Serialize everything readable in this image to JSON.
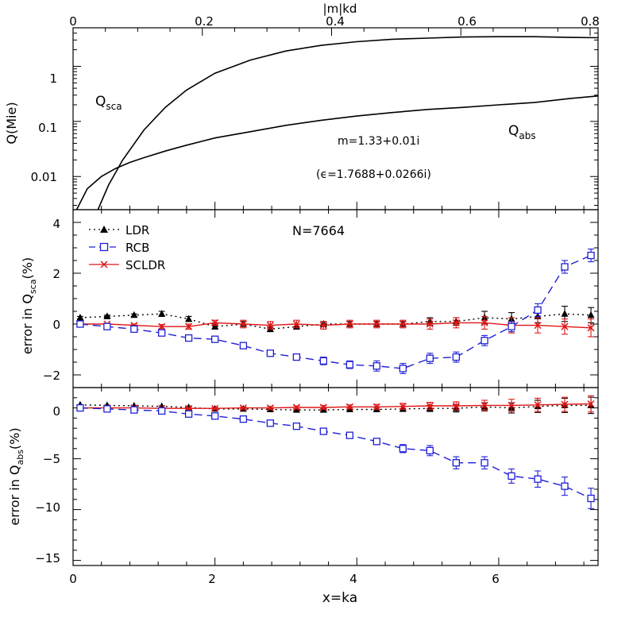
{
  "chart_data": [
    {
      "panel": "top",
      "type": "line",
      "xscale": "linear",
      "yscale": "log",
      "xlim": [
        0,
        7.4
      ],
      "ylim": [
        0.0025,
        5.0
      ],
      "xlabel_top": "|m|kd",
      "top_axis_ticks": [
        "0",
        "0.2",
        "0.4",
        "0.6",
        "0.8"
      ],
      "ylabel": "Q(Mie)",
      "ytick_labels": [
        "0.01",
        "0.1",
        "1"
      ],
      "annotations": {
        "qsca_main": "Q",
        "qsca_sub": "sca",
        "qabs_main": "Q",
        "qabs_sub": "abs",
        "m_text": "m=1.33+0.01i",
        "eps_text": "(ϵ=1.7688+0.0266i)"
      },
      "series": [
        {
          "x": [
            0.35,
            0.5,
            0.7,
            1.0,
            1.3,
            1.6,
            2.0,
            2.5,
            3.0,
            3.5,
            4.0,
            4.5,
            5.0,
            5.5,
            6.0,
            6.5,
            7.0,
            7.4
          ],
          "y": [
            0.0025,
            0.007,
            0.02,
            0.07,
            0.18,
            0.37,
            0.75,
            1.3,
            1.9,
            2.4,
            2.8,
            3.1,
            3.25,
            3.4,
            3.45,
            3.45,
            3.35,
            3.3
          ]
        },
        {
          "x": [
            0.05,
            0.2,
            0.4,
            0.6,
            0.8,
            1.0,
            1.3,
            1.6,
            2.0,
            2.5,
            3.0,
            3.5,
            4.0,
            4.5,
            5.0,
            5.5,
            6.0,
            6.5,
            7.0,
            7.4
          ],
          "y": [
            0.0025,
            0.006,
            0.01,
            0.014,
            0.018,
            0.022,
            0.029,
            0.037,
            0.05,
            0.065,
            0.085,
            0.105,
            0.125,
            0.145,
            0.165,
            0.18,
            0.2,
            0.22,
            0.26,
            0.29
          ]
        }
      ]
    },
    {
      "panel": "middle",
      "type": "line",
      "xlim": [
        0,
        7.4
      ],
      "ylim": [
        -2.5,
        4.5
      ],
      "ylabel_main": "error in Q",
      "ylabel_sub": "sca",
      "ylabel_suffix": "(%)",
      "ytick_labels": [
        "−2",
        "0",
        "2",
        "4"
      ],
      "n_text": "N=7664",
      "legend_position": "top-left",
      "legend": [
        "LDR",
        "RCB",
        "SCLDR"
      ],
      "x": [
        0.1,
        0.48,
        0.86,
        1.25,
        1.63,
        2.0,
        2.4,
        2.78,
        3.15,
        3.53,
        3.9,
        4.28,
        4.65,
        5.03,
        5.4,
        5.8,
        6.18,
        6.55,
        6.93,
        7.3
      ],
      "series": [
        {
          "name": "LDR",
          "y": [
            0.25,
            0.3,
            0.35,
            0.4,
            0.2,
            -0.1,
            0.0,
            -0.2,
            -0.1,
            0.0,
            0.0,
            0.0,
            0.0,
            0.1,
            0.1,
            0.25,
            0.2,
            0.3,
            0.4,
            0.35
          ],
          "err": [
            0.05,
            0.05,
            0.05,
            0.1,
            0.1,
            0.1,
            0.1,
            0.1,
            0.1,
            0.1,
            0.1,
            0.1,
            0.1,
            0.15,
            0.15,
            0.25,
            0.25,
            0.25,
            0.3,
            0.3
          ]
        },
        {
          "name": "RCB",
          "y": [
            0.0,
            -0.1,
            -0.2,
            -0.35,
            -0.55,
            -0.6,
            -0.85,
            -1.15,
            -1.3,
            -1.45,
            -1.6,
            -1.65,
            -1.75,
            -1.35,
            -1.3,
            -0.65,
            -0.1,
            0.55,
            2.25,
            2.7
          ],
          "err": [
            0.03,
            0.05,
            0.05,
            0.05,
            0.08,
            0.08,
            0.1,
            0.1,
            0.12,
            0.15,
            0.15,
            0.2,
            0.2,
            0.2,
            0.2,
            0.2,
            0.2,
            0.25,
            0.25,
            0.25
          ]
        },
        {
          "name": "SCLDR",
          "y": [
            0.0,
            0.0,
            -0.05,
            -0.1,
            -0.1,
            0.05,
            0.0,
            -0.05,
            0.0,
            -0.05,
            0.0,
            0.0,
            0.0,
            0.0,
            0.05,
            0.05,
            -0.05,
            -0.05,
            -0.1,
            -0.15
          ],
          "err": [
            0.03,
            0.03,
            0.05,
            0.08,
            0.1,
            0.1,
            0.15,
            0.15,
            0.15,
            0.15,
            0.15,
            0.15,
            0.15,
            0.2,
            0.2,
            0.25,
            0.3,
            0.3,
            0.3,
            0.35
          ]
        }
      ]
    },
    {
      "panel": "bottom",
      "type": "line",
      "xlim": [
        0,
        7.4
      ],
      "ylim": [
        -15.5,
        2.0
      ],
      "xlabel": "x=ka",
      "xtick_labels": [
        "0",
        "2",
        "4",
        "6"
      ],
      "ylabel_main": "error in Q",
      "ylabel_sub": "abs",
      "ylabel_suffix": "(%)",
      "ytick_labels": [
        "−15",
        "−10",
        "−5",
        "0"
      ],
      "x": [
        0.1,
        0.48,
        0.86,
        1.25,
        1.63,
        2.0,
        2.4,
        2.78,
        3.15,
        3.53,
        3.9,
        4.28,
        4.65,
        5.03,
        5.4,
        5.8,
        6.18,
        6.55,
        6.93,
        7.3
      ],
      "series": [
        {
          "name": "LDR",
          "y": [
            0.3,
            0.25,
            0.2,
            0.15,
            0.05,
            -0.1,
            -0.1,
            -0.15,
            -0.2,
            -0.2,
            -0.15,
            -0.15,
            -0.1,
            -0.05,
            -0.05,
            0.1,
            0.0,
            0.15,
            0.25,
            0.25
          ],
          "err": [
            0.05,
            0.05,
            0.05,
            0.05,
            0.1,
            0.1,
            0.1,
            0.1,
            0.1,
            0.15,
            0.2,
            0.2,
            0.25,
            0.3,
            0.35,
            0.4,
            0.5,
            0.6,
            0.7,
            0.8
          ]
        },
        {
          "name": "RCB",
          "y": [
            0.0,
            -0.1,
            -0.2,
            -0.3,
            -0.6,
            -0.8,
            -1.1,
            -1.5,
            -1.8,
            -2.3,
            -2.7,
            -3.3,
            -4.0,
            -4.2,
            -5.4,
            -5.4,
            -6.7,
            -7.0,
            -7.7,
            -8.9
          ],
          "err": [
            0.03,
            0.05,
            0.05,
            0.05,
            0.1,
            0.1,
            0.15,
            0.15,
            0.2,
            0.2,
            0.25,
            0.3,
            0.4,
            0.5,
            0.6,
            0.6,
            0.7,
            0.8,
            0.9,
            1.0
          ]
        },
        {
          "name": "SCLDR",
          "y": [
            0.0,
            0.0,
            0.0,
            -0.05,
            -0.05,
            -0.05,
            0.0,
            0.0,
            0.05,
            0.05,
            0.1,
            0.1,
            0.15,
            0.2,
            0.2,
            0.25,
            0.25,
            0.3,
            0.35,
            0.4
          ],
          "err": [
            0.03,
            0.03,
            0.05,
            0.05,
            0.08,
            0.1,
            0.1,
            0.15,
            0.15,
            0.2,
            0.2,
            0.25,
            0.3,
            0.35,
            0.4,
            0.5,
            0.6,
            0.65,
            0.7,
            0.8
          ]
        }
      ]
    }
  ],
  "styles": {
    "LDR": {
      "color": "#000000",
      "marker": "triangle",
      "dash": "2,4"
    },
    "RCB": {
      "color": "#1f1fd6",
      "marker": "square",
      "dash": "10,6"
    },
    "SCLDR": {
      "color": "#e01616",
      "marker": "cross",
      "dash": ""
    }
  }
}
